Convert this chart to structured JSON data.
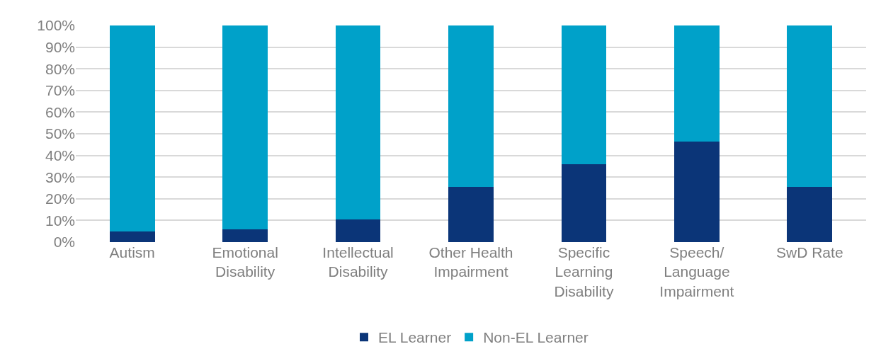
{
  "chart_data": {
    "type": "bar",
    "stacked": true,
    "categories": [
      "Autism",
      "Emotional Disability",
      "Intellectual Disability",
      "Other Health Impairment",
      "Specific Learning Disability",
      "Speech/ Language Impairment",
      "SwD Rate"
    ],
    "series": [
      {
        "name": "EL Learner",
        "color": "#0b3578",
        "values": [
          5.0,
          5.8,
          10.5,
          25.6,
          36.0,
          46.5,
          25.6
        ]
      },
      {
        "name": "Non-EL Learner",
        "color": "#00a1c9",
        "values": [
          95.0,
          94.2,
          89.5,
          74.4,
          64.0,
          53.5,
          74.4
        ]
      }
    ],
    "ylim": [
      0,
      100
    ],
    "yticks": [
      {
        "value": 0,
        "label": "0%"
      },
      {
        "value": 10,
        "label": "10%"
      },
      {
        "value": 20,
        "label": "20%"
      },
      {
        "value": 30,
        "label": "30%"
      },
      {
        "value": 40,
        "label": "40%"
      },
      {
        "value": 50,
        "label": "50%"
      },
      {
        "value": 60,
        "label": "60%"
      },
      {
        "value": 70,
        "label": "70%"
      },
      {
        "value": 80,
        "label": "80%"
      },
      {
        "value": 90,
        "label": "90%"
      },
      {
        "value": 100,
        "label": "100%"
      }
    ],
    "grid": "y",
    "legend": "bottom"
  }
}
